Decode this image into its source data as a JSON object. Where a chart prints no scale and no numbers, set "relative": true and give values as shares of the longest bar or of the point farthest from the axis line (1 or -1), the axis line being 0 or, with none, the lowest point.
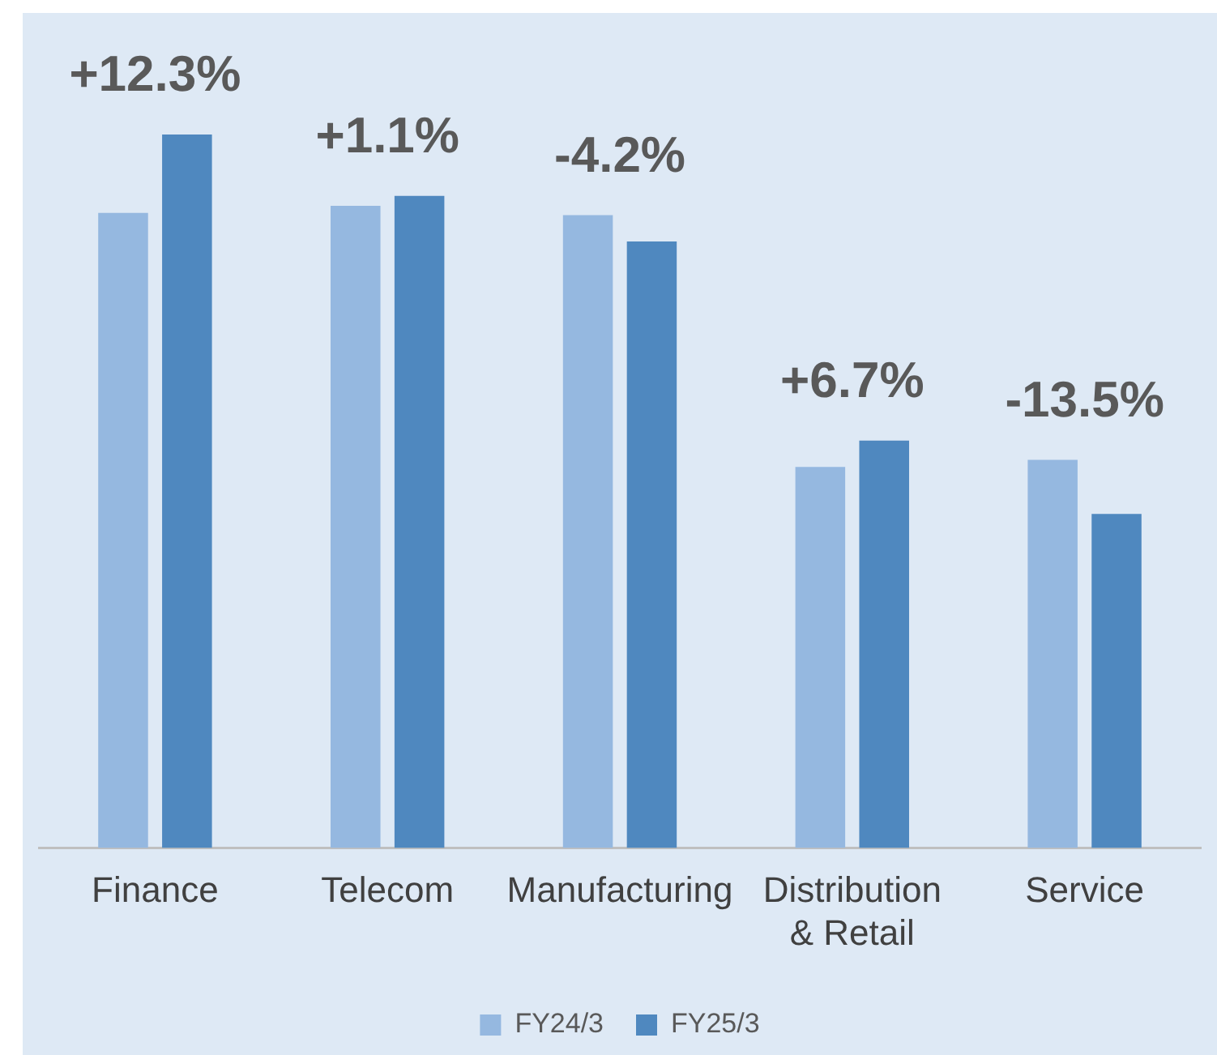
{
  "chart_data": {
    "type": "bar",
    "relative": true,
    "categories": [
      "Finance",
      "Telecom",
      "Manufacturing",
      "Distribution & Retail",
      "Service"
    ],
    "series": [
      {
        "name": "FY24/3",
        "color": "#95b8e0",
        "values": [
          0.89,
          0.9,
          0.887,
          0.534,
          0.544
        ]
      },
      {
        "name": "FY25/3",
        "color": "#4f88bf",
        "values": [
          1,
          0.914,
          0.85,
          0.571,
          0.468
        ]
      }
    ],
    "annotations": [
      {
        "text": "+12.3%",
        "x": "Finance",
        "y": 1
      },
      {
        "text": "+1.1%",
        "x": "Telecom",
        "y": 0.914
      },
      {
        "text": "-4.2%",
        "x": "Manufacturing",
        "y": 0.887
      },
      {
        "text": "+6.7%",
        "x": "Distribution & Retail",
        "y": 0.571
      },
      {
        "text": "-13.5%",
        "x": "Service",
        "y": 0.544
      }
    ],
    "grid": false,
    "legend": "bottom"
  }
}
